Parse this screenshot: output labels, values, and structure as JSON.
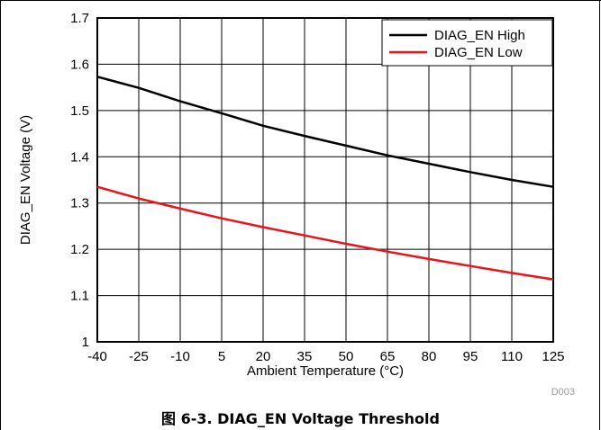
{
  "chart_data": {
    "type": "line",
    "xlabel": "Ambient Temperature (°C)",
    "ylabel": "DIAG_EN Voltage (V)",
    "xlim": [
      -40,
      125
    ],
    "ylim": [
      1,
      1.7
    ],
    "x_ticks": [
      -40,
      -25,
      -10,
      5,
      20,
      35,
      50,
      65,
      80,
      95,
      110,
      125
    ],
    "y_ticks": [
      1,
      1.1,
      1.2,
      1.3,
      1.4,
      1.5,
      1.6,
      1.7
    ],
    "x_tick_labels": [
      "-40",
      "-25",
      "-10",
      "5",
      "20",
      "35",
      "50",
      "65",
      "80",
      "95",
      "110",
      "125"
    ],
    "y_tick_labels": [
      "1",
      "1.1",
      "1.2",
      "1.3",
      "1.4",
      "1.5",
      "1.6",
      "1.7"
    ],
    "grid": true,
    "legend_position": "top-right",
    "series": [
      {
        "name": "DIAG_EN High",
        "color": "#000000",
        "x": [
          -40,
          -25,
          -10,
          5,
          20,
          35,
          50,
          65,
          80,
          95,
          110,
          125
        ],
        "y": [
          1.573,
          1.549,
          1.52,
          1.494,
          1.467,
          1.445,
          1.424,
          1.403,
          1.385,
          1.367,
          1.35,
          1.335
        ]
      },
      {
        "name": "DIAG_EN Low",
        "color": "#e8141a",
        "x": [
          -40,
          -25,
          -10,
          5,
          20,
          35,
          50,
          65,
          80,
          95,
          110,
          125
        ],
        "y": [
          1.335,
          1.31,
          1.288,
          1.267,
          1.248,
          1.23,
          1.212,
          1.195,
          1.179,
          1.164,
          1.149,
          1.135
        ]
      }
    ]
  },
  "figure_code": "D003",
  "caption": "图 6-3. DIAG_EN Voltage Threshold"
}
